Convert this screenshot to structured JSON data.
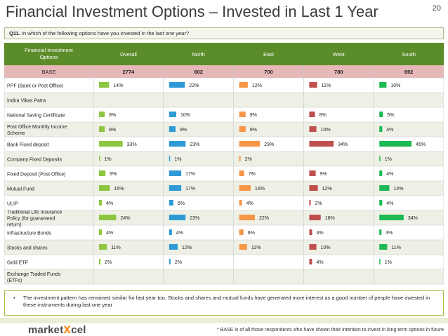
{
  "page": {
    "title": "Financial Investment Options – Invested in Last 1 Year",
    "page_number": "20",
    "question_number": "Q11.",
    "question_text": "In which of the following options have you invested in the last one year?",
    "note": "The investment pattern has remained similar for last year too. Stocks and shares and mutual funds have generated more interest as a good number of people have invested in these instruments during last one year",
    "bullet": "•",
    "logo_part1": "market",
    "logo_part2": "x",
    "logo_part3": "cel",
    "footnote": "* BASE is of all those respondents who have shown their intention to invest in long term options in future"
  },
  "chart_data": {
    "type": "table",
    "header_label": "Financial Investment Options",
    "base_label": "BASE",
    "series": [
      {
        "name": "Overall",
        "color": "#8dc63f",
        "base": "2774",
        "values": [
          14,
          null,
          8,
          8,
          33,
          1,
          9,
          15,
          4,
          24,
          4,
          11,
          2,
          null
        ]
      },
      {
        "name": "North",
        "color": "#2e9bd6",
        "base": "602",
        "values": [
          22,
          null,
          10,
          9,
          23,
          1,
          17,
          17,
          6,
          23,
          4,
          12,
          2,
          null
        ]
      },
      {
        "name": "East",
        "color": "#f79646",
        "base": "700",
        "values": [
          12,
          null,
          9,
          9,
          29,
          2,
          7,
          16,
          4,
          22,
          6,
          11,
          null,
          null
        ]
      },
      {
        "name": "West",
        "color": "#c0504d",
        "base": "780",
        "values": [
          11,
          null,
          8,
          10,
          34,
          null,
          9,
          12,
          2,
          16,
          4,
          10,
          4,
          null
        ]
      },
      {
        "name": "South",
        "color": "#1db954",
        "base": "692",
        "values": [
          10,
          null,
          5,
          4,
          45,
          1,
          4,
          14,
          4,
          34,
          3,
          11,
          1,
          null
        ]
      }
    ],
    "categories": [
      "PPF (Bank or Post Office)",
      "Indira Vikas Patra",
      "National Saving Certificate",
      "Post Office Monthly Income Scheme",
      "Bank Fixed deposit",
      "Company Fixed Deposits",
      "Fixed Deposit (Post Office)",
      "Mutual Fund",
      "ULIP",
      "Traditional Life Insurance Policy (for guaranteed return)",
      "Infrastructure Bonds",
      "Stocks and shares",
      "Gold ETF",
      "Exchange Traded Funds (ETFs)"
    ],
    "value_suffix": "%",
    "colors": {
      "header_bg": "#5b8c2a",
      "header_text": "#ffffff",
      "base_bg": "#e6b8b7",
      "row_alt_bg": "#eef0e6",
      "grid": "#c8c8c8"
    }
  }
}
